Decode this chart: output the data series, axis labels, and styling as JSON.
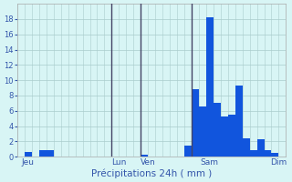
{
  "background_color": "#d8f5f5",
  "bar_color": "#1155dd",
  "grid_color": "#aacccc",
  "ylim": [
    0,
    20
  ],
  "yticks": [
    0,
    2,
    4,
    6,
    8,
    10,
    12,
    14,
    16,
    18
  ],
  "xlabel": "Précipitations 24h ( mm )",
  "day_labels": [
    "Jeu",
    "Lun",
    "Ven",
    "Sam",
    "Dim"
  ],
  "day_positions": [
    1,
    13.5,
    17.5,
    26,
    35.5
  ],
  "num_bars": 37,
  "bar_values": [
    0,
    0.6,
    0,
    0.8,
    0.9,
    0,
    0,
    0,
    0,
    0,
    0,
    0,
    0,
    0,
    0,
    0,
    0,
    0.3,
    0,
    0,
    0,
    0,
    0,
    1.5,
    8.8,
    6.6,
    18.2,
    7.0,
    5.3,
    5.5,
    9.3,
    2.4,
    0.8,
    2.3,
    0.9,
    0.55,
    0
  ],
  "vline_positions": [
    12.5,
    16.5,
    23.5
  ],
  "vline_color": "#444466",
  "tick_color": "#3355aa",
  "label_color": "#3355aa"
}
